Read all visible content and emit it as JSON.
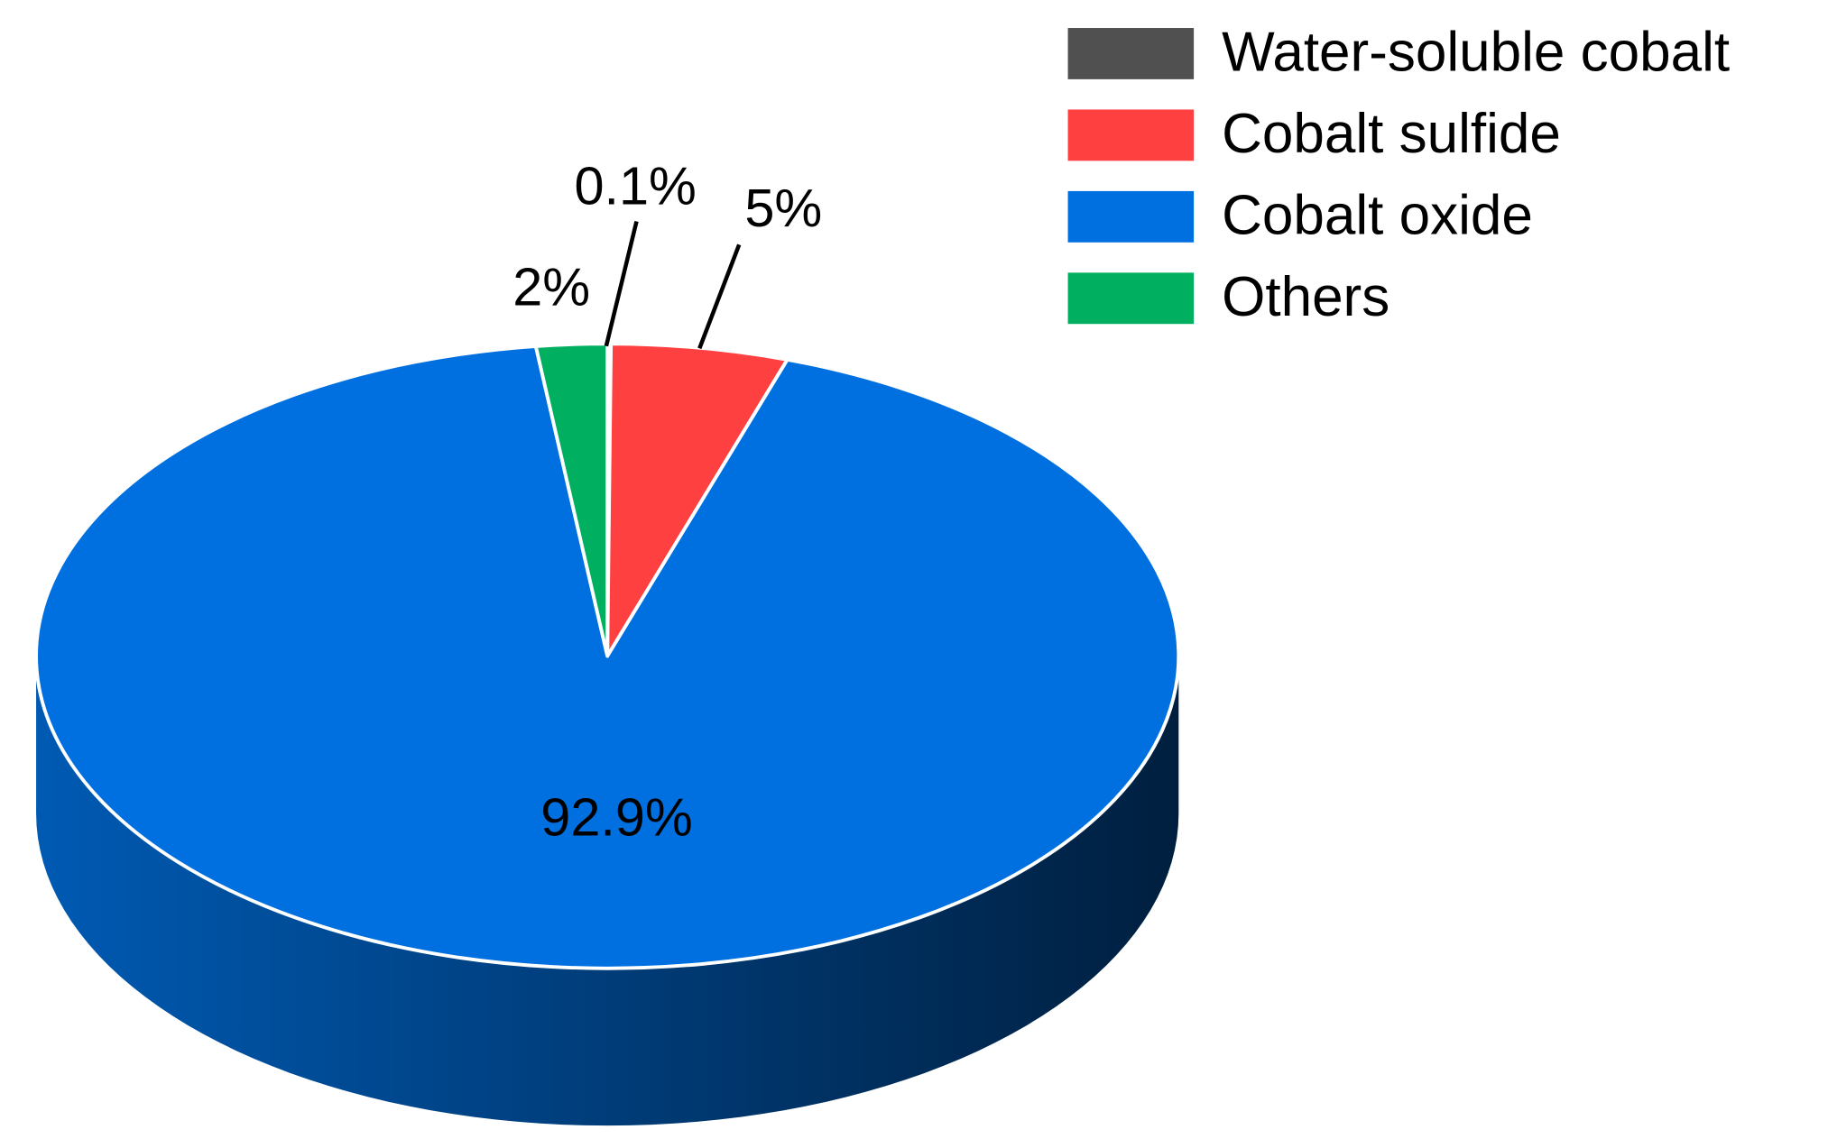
{
  "chart_data": {
    "type": "pie",
    "categories": [
      "Water-soluble cobalt",
      "Cobalt sulfide",
      "Cobalt oxide",
      "Others"
    ],
    "values": [
      0.1,
      5,
      92.9,
      2
    ],
    "value_labels": [
      "0.1%",
      "5%",
      "92.9%",
      "2%"
    ],
    "colors": [
      "#505050",
      "#ff4040",
      "#0070e0",
      "#00b060"
    ],
    "legend": "top-right"
  }
}
